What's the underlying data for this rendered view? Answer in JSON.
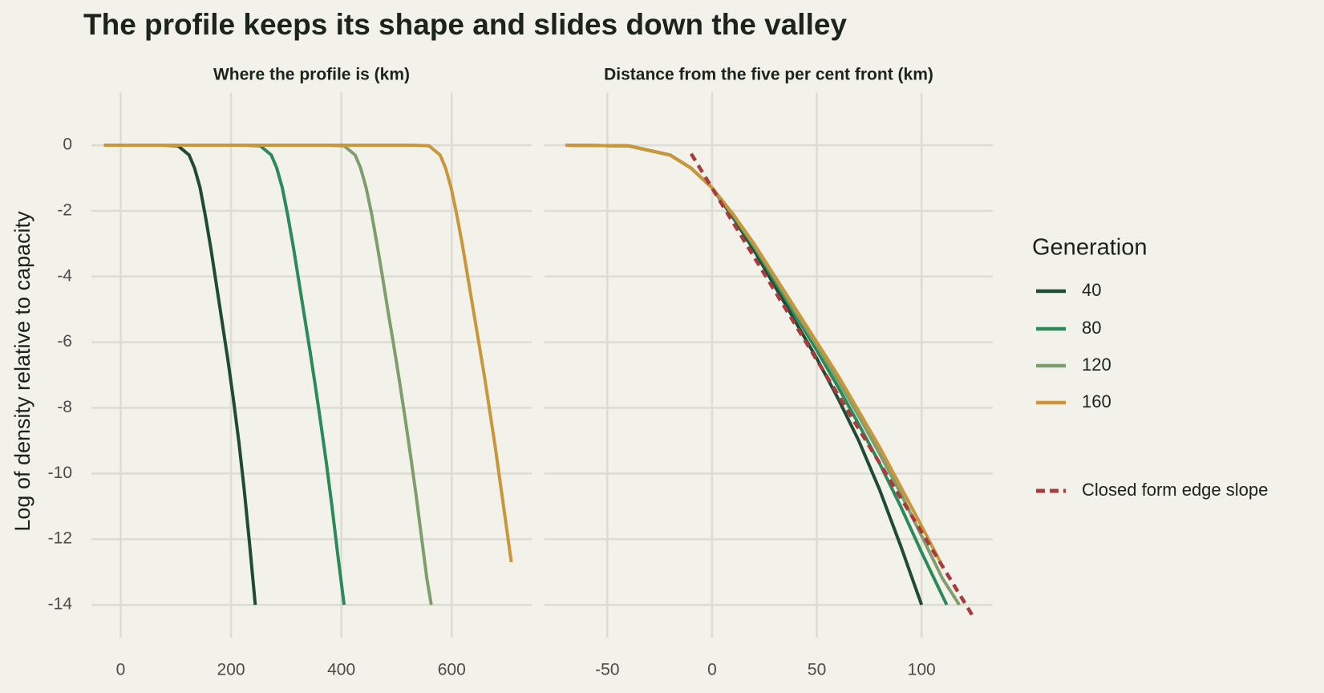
{
  "title": "The profile keeps its shape and slides down the valley",
  "y_label": "Log of density relative to capacity",
  "legend_title": "Generation",
  "chart_data": [
    {
      "type": "line",
      "title": "Where the profile is (km)",
      "xlim": [
        -53,
        745
      ],
      "ylim": [
        -15,
        1.6
      ],
      "xticks": [
        0,
        200,
        400,
        600
      ],
      "yticks": [
        0,
        -2,
        -4,
        -6,
        -8,
        -10,
        -12,
        -14
      ],
      "grid": true,
      "series": [
        {
          "name": "40",
          "color": "#1f4a33",
          "x": [
            -30,
            74,
            104,
            124,
            134,
            144,
            154,
            164,
            174,
            184,
            194,
            204,
            214,
            224,
            234,
            244
          ],
          "values": [
            0,
            0,
            -0.02,
            -0.3,
            -0.7,
            -1.3,
            -2.2,
            -3.2,
            -4.3,
            -5.4,
            -6.5,
            -7.7,
            -9.0,
            -10.5,
            -12.2,
            -14
          ]
        },
        {
          "name": "80",
          "color": "#2b8a5a",
          "x": [
            -30,
            223,
            253,
            273,
            283,
            293,
            303,
            313,
            323,
            333,
            343,
            353,
            363,
            373,
            383,
            393,
            405
          ],
          "values": [
            0,
            0,
            -0.02,
            -0.3,
            -0.7,
            -1.3,
            -2.15,
            -3.1,
            -4.15,
            -5.2,
            -6.25,
            -7.35,
            -8.5,
            -9.7,
            -11.0,
            -12.4,
            -14
          ]
        },
        {
          "name": "120",
          "color": "#7f9e6e",
          "x": [
            -30,
            375,
            405,
            425,
            435,
            445,
            455,
            465,
            475,
            485,
            495,
            505,
            515,
            525,
            535,
            545,
            555,
            563
          ],
          "values": [
            0,
            0,
            -0.02,
            -0.3,
            -0.7,
            -1.3,
            -2.1,
            -3.05,
            -4.05,
            -5.1,
            -6.1,
            -7.15,
            -8.25,
            -9.4,
            -10.6,
            -11.9,
            -13.2,
            -14
          ]
        },
        {
          "name": "160",
          "color": "#c9973a",
          "x": [
            -30,
            529,
            559,
            579,
            589,
            599,
            609,
            619,
            629,
            639,
            649,
            659,
            669,
            679,
            689,
            699,
            708
          ],
          "values": [
            0,
            0,
            -0.02,
            -0.3,
            -0.7,
            -1.3,
            -2.1,
            -3.0,
            -4.0,
            -5.0,
            -6.0,
            -7.0,
            -8.1,
            -9.2,
            -10.4,
            -11.6,
            -12.7
          ]
        }
      ]
    },
    {
      "type": "line",
      "title": "Distance from the five per cent front (km)",
      "xlim": [
        -80,
        134
      ],
      "ylim": [
        -15,
        1.6
      ],
      "xticks": [
        -50,
        0,
        50,
        100
      ],
      "yticks": [
        0,
        -2,
        -4,
        -6,
        -8,
        -10,
        -12,
        -14
      ],
      "grid": true,
      "series": [
        {
          "color": "#1f4a33",
          "x": [
            -70,
            -40,
            -20,
            -10,
            0,
            10,
            20,
            30,
            40,
            50,
            60,
            70,
            80,
            90,
            100
          ],
          "values": [
            0,
            -0.02,
            -0.3,
            -0.7,
            -1.3,
            -2.2,
            -3.2,
            -4.3,
            -5.4,
            -6.5,
            -7.7,
            -9.0,
            -10.5,
            -12.2,
            -14
          ]
        },
        {
          "color": "#2b8a5a",
          "x": [
            -70,
            -40,
            -20,
            -10,
            0,
            10,
            20,
            30,
            40,
            50,
            60,
            70,
            80,
            90,
            100,
            112
          ],
          "values": [
            0,
            -0.02,
            -0.3,
            -0.7,
            -1.3,
            -2.15,
            -3.1,
            -4.15,
            -5.2,
            -6.25,
            -7.35,
            -8.5,
            -9.7,
            -11.0,
            -12.4,
            -14
          ]
        },
        {
          "color": "#7f9e6e",
          "x": [
            -70,
            -40,
            -20,
            -10,
            0,
            10,
            20,
            30,
            40,
            50,
            60,
            70,
            80,
            90,
            100,
            110,
            118
          ],
          "values": [
            0,
            -0.02,
            -0.3,
            -0.7,
            -1.3,
            -2.1,
            -3.05,
            -4.05,
            -5.1,
            -6.1,
            -7.15,
            -8.25,
            -9.4,
            -10.6,
            -11.9,
            -13.2,
            -14
          ]
        },
        {
          "color": "#c9973a",
          "x": [
            -70,
            -40,
            -20,
            -10,
            0,
            10,
            20,
            30,
            40,
            50,
            60,
            70,
            80,
            90,
            100,
            109
          ],
          "values": [
            0,
            -0.02,
            -0.3,
            -0.7,
            -1.3,
            -2.1,
            -3.0,
            -4.0,
            -5.0,
            -6.0,
            -7.0,
            -8.1,
            -9.2,
            -10.4,
            -11.6,
            -12.7
          ]
        },
        {
          "name": "Closed form edge slope",
          "color": "#a83b3b",
          "dash": true,
          "x": [
            -10,
            125
          ],
          "values": [
            -0.26,
            -14.4
          ]
        }
      ]
    }
  ]
}
